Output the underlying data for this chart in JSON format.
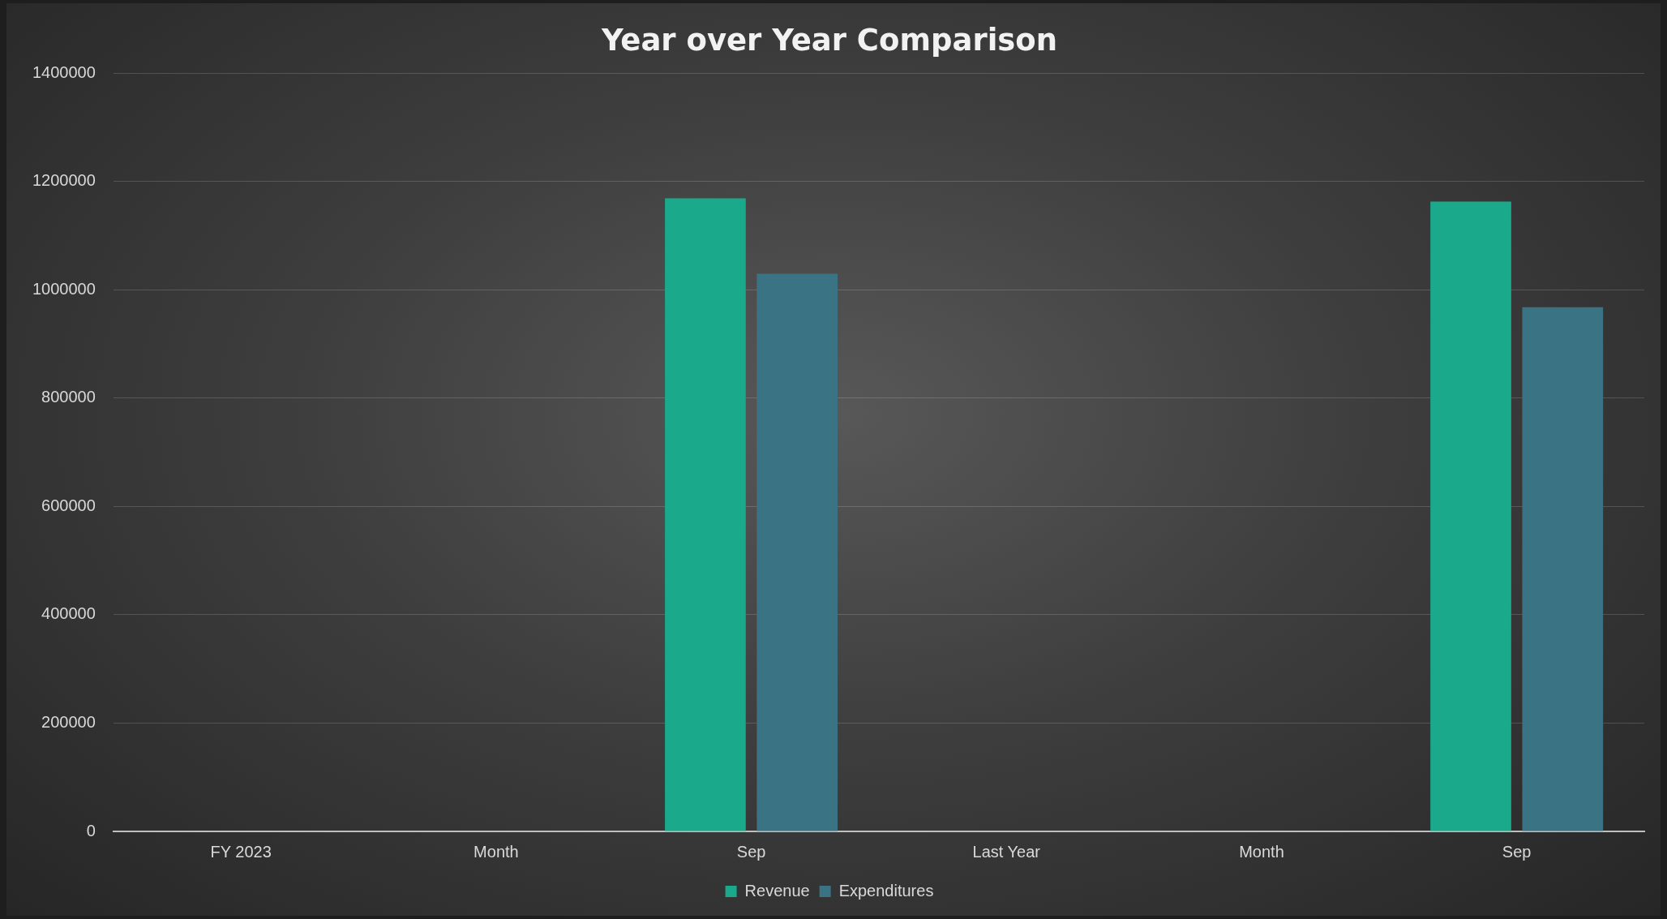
{
  "chart_data": {
    "type": "bar",
    "title": "Year over Year Comparison",
    "categories": [
      "FY 2023",
      "Month",
      "Sep",
      "Last Year",
      "Month",
      "Sep"
    ],
    "series": [
      {
        "name": "Revenue",
        "color": "#1aa98a",
        "values": [
          null,
          null,
          1169000,
          null,
          null,
          1163000
        ]
      },
      {
        "name": "Expenditures",
        "color": "#3a7383",
        "values": [
          null,
          null,
          1030000,
          null,
          null,
          968000
        ]
      }
    ],
    "ylim": [
      0,
      1400000
    ],
    "yticks": [
      0,
      200000,
      400000,
      600000,
      800000,
      1000000,
      1200000,
      1400000
    ],
    "grid": "y",
    "legend": "bottom"
  }
}
